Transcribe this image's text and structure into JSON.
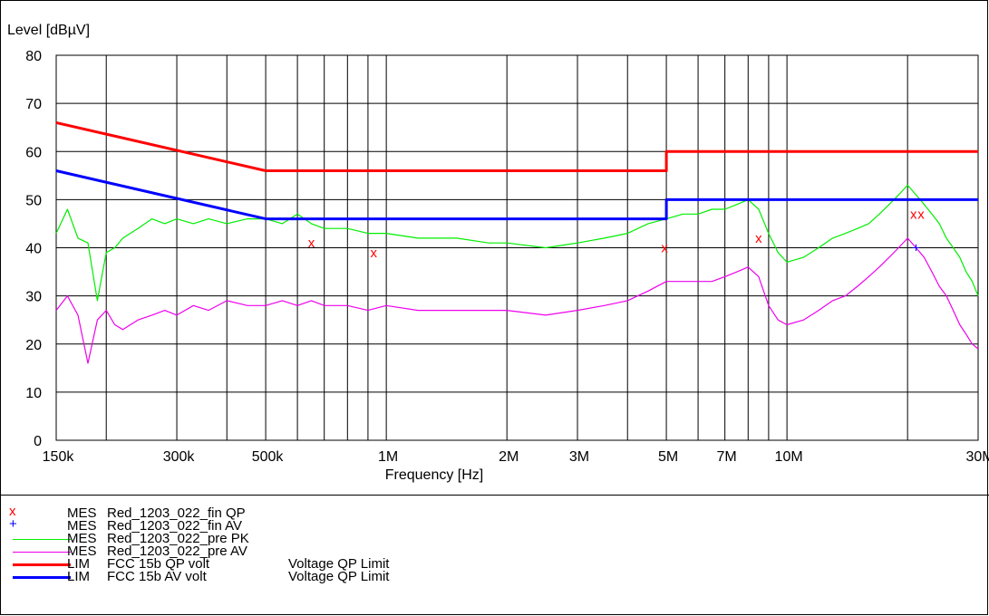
{
  "chart_data": {
    "type": "line",
    "title": "",
    "ylabel": "Level [dBµV]",
    "xlabel": "Frequency [Hz]",
    "x_scale": "log",
    "xlim": [
      150000,
      30000000
    ],
    "ylim": [
      0,
      80
    ],
    "grid": true,
    "y_ticks": [
      0,
      10,
      20,
      30,
      40,
      50,
      60,
      70,
      80
    ],
    "y_tick_labels": [
      "0",
      "10",
      "20",
      "30",
      "40",
      "50",
      "60",
      "70",
      "80"
    ],
    "x_ticks": [
      150000,
      300000,
      500000,
      1000000,
      2000000,
      3000000,
      5000000,
      7000000,
      10000000,
      30000000
    ],
    "x_tick_labels": [
      "150k",
      "300k",
      "500k",
      "1M",
      "2M",
      "3M",
      "5M",
      "7M",
      "10M",
      "30M"
    ],
    "series": [
      {
        "name": "Red_1203_022_pre PK",
        "color": "#00ee00",
        "x": [
          150000,
          160000,
          170000,
          180000,
          190000,
          200000,
          210000,
          220000,
          240000,
          260000,
          280000,
          300000,
          330000,
          360000,
          400000,
          450000,
          500000,
          550000,
          600000,
          650000,
          700000,
          800000,
          900000,
          1000000,
          1200000,
          1500000,
          1800000,
          2000000,
          2500000,
          3000000,
          3500000,
          4000000,
          4500000,
          5000000,
          5500000,
          6000000,
          6500000,
          7000000,
          7500000,
          8000000,
          8500000,
          9000000,
          9500000,
          10000000,
          11000000,
          12000000,
          13000000,
          14000000,
          15000000,
          16000000,
          17000000,
          18000000,
          19000000,
          20000000,
          21000000,
          22000000,
          23000000,
          24000000,
          25000000,
          26000000,
          27000000,
          28000000,
          29000000,
          30000000
        ],
        "values": [
          43,
          48,
          42,
          41,
          29,
          39,
          40,
          42,
          44,
          46,
          45,
          46,
          45,
          46,
          45,
          46,
          46,
          45,
          47,
          45,
          44,
          44,
          43,
          43,
          42,
          42,
          41,
          41,
          40,
          41,
          42,
          43,
          45,
          46,
          47,
          47,
          48,
          48,
          49,
          50,
          48,
          43,
          39,
          37,
          38,
          40,
          42,
          43,
          44,
          45,
          47,
          49,
          51,
          53,
          51,
          49,
          47,
          45,
          42,
          40,
          38,
          35,
          33,
          30
        ]
      },
      {
        "name": "Red_1203_022_pre AV",
        "color": "#ee00ee",
        "x": [
          150000,
          160000,
          170000,
          180000,
          190000,
          200000,
          210000,
          220000,
          240000,
          260000,
          280000,
          300000,
          330000,
          360000,
          400000,
          450000,
          500000,
          550000,
          600000,
          650000,
          700000,
          800000,
          900000,
          1000000,
          1200000,
          1500000,
          1800000,
          2000000,
          2500000,
          3000000,
          3500000,
          4000000,
          4500000,
          5000000,
          5500000,
          6000000,
          6500000,
          7000000,
          7500000,
          8000000,
          8500000,
          9000000,
          9500000,
          10000000,
          11000000,
          12000000,
          13000000,
          14000000,
          15000000,
          16000000,
          17000000,
          18000000,
          19000000,
          20000000,
          21000000,
          22000000,
          23000000,
          24000000,
          25000000,
          26000000,
          27000000,
          28000000,
          29000000,
          30000000
        ],
        "values": [
          27,
          30,
          26,
          16,
          25,
          27,
          24,
          23,
          25,
          26,
          27,
          26,
          28,
          27,
          29,
          28,
          28,
          29,
          28,
          29,
          28,
          28,
          27,
          28,
          27,
          27,
          27,
          27,
          26,
          27,
          28,
          29,
          31,
          33,
          33,
          33,
          33,
          34,
          35,
          36,
          34,
          28,
          25,
          24,
          25,
          27,
          29,
          30,
          32,
          34,
          36,
          38,
          40,
          42,
          40,
          38,
          35,
          32,
          30,
          27,
          24,
          22,
          20,
          19
        ]
      },
      {
        "name": "FCC 15b QP volt",
        "color": "#ff0000",
        "x": [
          150000,
          500000,
          5000000,
          5000000,
          30000000
        ],
        "values": [
          66,
          56,
          56,
          60,
          60
        ]
      },
      {
        "name": "FCC 15b AV volt",
        "color": "#0000ff",
        "x": [
          150000,
          500000,
          5000000,
          5000000,
          30000000
        ],
        "values": [
          56,
          46,
          46,
          50,
          50
        ]
      }
    ],
    "markers": [
      {
        "name": "Red_1203_022_fin QP",
        "symbol": "x",
        "color": "#ff0000",
        "points": [
          [
            650000,
            41
          ],
          [
            930000,
            39
          ],
          [
            4950000,
            40
          ],
          [
            8500000,
            42
          ],
          [
            20700000,
            47
          ],
          [
            21600000,
            47
          ]
        ]
      },
      {
        "name": "Red_1203_022_fin AV",
        "symbol": "+",
        "color": "#0000ff",
        "points": [
          [
            21000000,
            40
          ]
        ]
      }
    ]
  },
  "legend": [
    {
      "symbol": "x",
      "symbol_color": "#ff0000",
      "kind": "MES",
      "name": "Red_1203_022_fin QP",
      "desc": ""
    },
    {
      "symbol": "+",
      "symbol_color": "#0000ff",
      "kind": "MES",
      "name": "Red_1203_022_fin AV",
      "desc": ""
    },
    {
      "line_color": "#00ee00",
      "line_width": 1,
      "kind": "MES",
      "name": "Red_1203_022_pre PK",
      "desc": ""
    },
    {
      "line_color": "#ee00ee",
      "line_width": 1,
      "kind": "MES",
      "name": "Red_1203_022_pre AV",
      "desc": ""
    },
    {
      "line_color": "#ff0000",
      "line_width": 3,
      "kind": "LIM",
      "name": "FCC 15b QP volt",
      "desc": "Voltage QP Limit"
    },
    {
      "line_color": "#0000ff",
      "line_width": 3,
      "kind": "LIM",
      "name": "FCC 15b AV volt",
      "desc": "Voltage QP Limit"
    }
  ]
}
